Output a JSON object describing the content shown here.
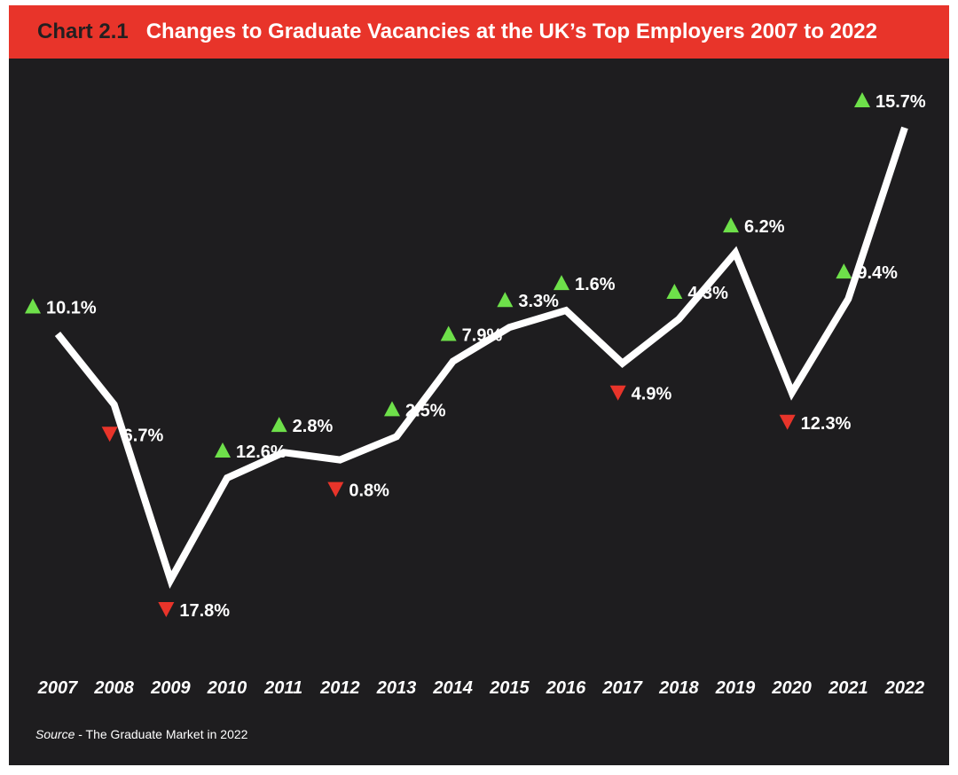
{
  "header": {
    "chart_label": "Chart 2.1",
    "title": "Changes to Graduate Vacancies at the UK’s Top Employers 2007 to 2022"
  },
  "source": {
    "label": "Source",
    "text": " - The Graduate Market in 2022"
  },
  "colors": {
    "header_bg": "#e8342a",
    "panel_bg": "#1e1d1f",
    "line": "#ffffff",
    "up": "#6ee04a",
    "down": "#e8342a"
  },
  "chart_data": {
    "type": "line",
    "title": "Changes to Graduate Vacancies at the UK’s Top Employers 2007 to 2022",
    "xlabel": "",
    "ylabel": "",
    "grid": false,
    "legend": "none",
    "x": [
      "2007",
      "2008",
      "2009",
      "2010",
      "2011",
      "2012",
      "2013",
      "2014",
      "2015",
      "2016",
      "2017",
      "2018",
      "2019",
      "2020",
      "2021",
      "2022"
    ],
    "changes": [
      {
        "year": "2007",
        "direction": "up",
        "label": "10.1%",
        "value": 10.1
      },
      {
        "year": "2008",
        "direction": "down",
        "label": "6.7%",
        "value": -6.7
      },
      {
        "year": "2009",
        "direction": "down",
        "label": "17.8%",
        "value": -17.8
      },
      {
        "year": "2010",
        "direction": "up",
        "label": "12.6%",
        "value": 12.6
      },
      {
        "year": "2011",
        "direction": "up",
        "label": "2.8%",
        "value": 2.8
      },
      {
        "year": "2012",
        "direction": "down",
        "label": "0.8%",
        "value": -0.8
      },
      {
        "year": "2013",
        "direction": "up",
        "label": "2.5%",
        "value": 2.5
      },
      {
        "year": "2014",
        "direction": "up",
        "label": "7.9%",
        "value": 7.9
      },
      {
        "year": "2015",
        "direction": "up",
        "label": "3.3%",
        "value": 3.3
      },
      {
        "year": "2016",
        "direction": "up",
        "label": "1.6%",
        "value": 1.6
      },
      {
        "year": "2017",
        "direction": "down",
        "label": "4.9%",
        "value": -4.9
      },
      {
        "year": "2018",
        "direction": "up",
        "label": "4.3%",
        "value": 4.3
      },
      {
        "year": "2019",
        "direction": "up",
        "label": "6.2%",
        "value": 6.2
      },
      {
        "year": "2020",
        "direction": "down",
        "label": "12.3%",
        "value": -12.3
      },
      {
        "year": "2021",
        "direction": "up",
        "label": "9.4%",
        "value": 9.4
      },
      {
        "year": "2022",
        "direction": "up",
        "label": "15.7%",
        "value": 15.7
      }
    ]
  }
}
